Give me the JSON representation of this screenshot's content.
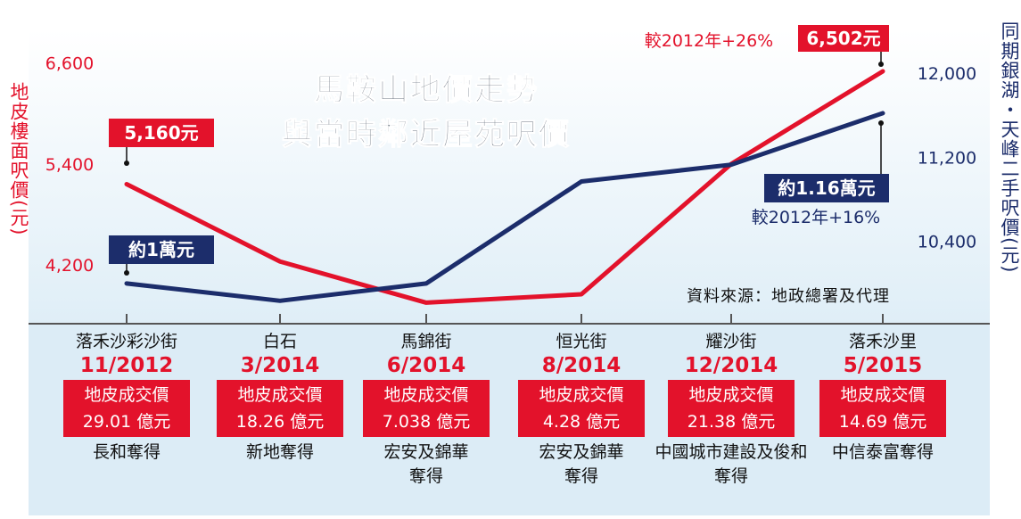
{
  "chart_data": {
    "type": "line",
    "title": "馬鞍山地價走勢",
    "subtitle": "與當時鄰近屋苑呎價",
    "source": "資料來源：地政總署及代理",
    "left_axis": {
      "label": "地皮樓面呎價(元)",
      "ticks": [
        "6,600",
        "5,400",
        "4,200"
      ],
      "tick_values": [
        6600,
        5400,
        4200
      ],
      "range": [
        3500,
        7000
      ],
      "color": "#e3122b"
    },
    "right_axis": {
      "label": "同期銀湖・天峰二手呎價(元)",
      "ticks": [
        "12,000",
        "11,200",
        "10,400"
      ],
      "tick_values": [
        12000,
        11200,
        10400
      ],
      "range": [
        9617,
        12417
      ],
      "color": "#1c2d6b"
    },
    "categories": [
      {
        "location": "落禾沙彩沙街",
        "date": "11/2012",
        "price_label": "地皮成交價",
        "price": "29.01 億元",
        "buyer": "長和奪得"
      },
      {
        "location": "白石",
        "date": "3/2014",
        "price_label": "地皮成交價",
        "price": "18.26 億元",
        "buyer": "新地奪得"
      },
      {
        "location": "馬錦街",
        "date": "6/2014",
        "price_label": "地皮成交價",
        "price": "7.038 億元",
        "buyer": "宏安及錦華奪得"
      },
      {
        "location": "恒光街",
        "date": "8/2014",
        "price_label": "地皮成交價",
        "price": "4.28 億元",
        "buyer": "宏安及錦華奪得"
      },
      {
        "location": "耀沙街",
        "date": "12/2014",
        "price_label": "地皮成交價",
        "price": "21.38 億元",
        "buyer": "中國城市建設及俊和奪得"
      },
      {
        "location": "落禾沙里",
        "date": "5/2015",
        "price_label": "地皮成交價",
        "price": "14.69 億元",
        "buyer": "中信泰富奪得"
      }
    ],
    "series": [
      {
        "color": "#e3122b",
        "axis": "left",
        "values": [
          5160,
          4240,
          3750,
          3850,
          5400,
          6502
        ]
      },
      {
        "color": "#1c2d6b",
        "axis": "right",
        "values": [
          10000,
          9835,
          10000,
          10970,
          11130,
          11620
        ]
      }
    ],
    "callouts": {
      "red_start": "5,160元",
      "red_end": "6,502元",
      "red_change": "較2012年+26%",
      "blue_start": "約1萬元",
      "blue_end": "約1.16萬元",
      "blue_change": "較2012年+16%"
    },
    "grid": false
  }
}
